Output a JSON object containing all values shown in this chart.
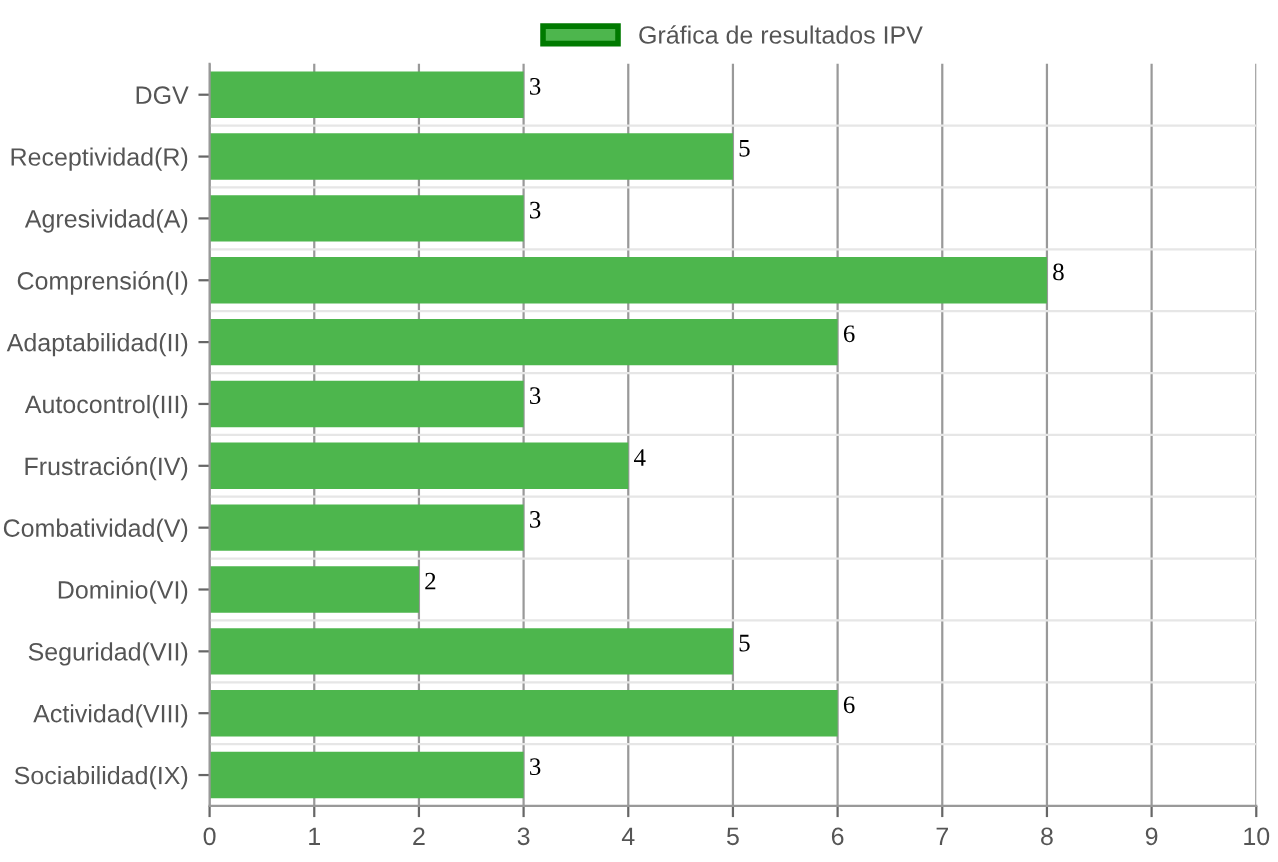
{
  "chart_data": {
    "type": "bar",
    "orientation": "horizontal",
    "categories": [
      "DGV",
      "Receptividad(R)",
      "Agresividad(A)",
      "Comprensión(I)",
      "Adaptabilidad(II)",
      "Autocontrol(III)",
      "Frustración(IV)",
      "Combatividad(V)",
      "Dominio(VI)",
      "Seguridad(VII)",
      "Actividad(VIII)",
      "Sociabilidad(IX)"
    ],
    "series": [
      {
        "name": "Gráfica de resultados IPV",
        "color": "#4db64d",
        "values": [
          3,
          5,
          3,
          8,
          6,
          3,
          4,
          3,
          2,
          5,
          6,
          3
        ]
      }
    ],
    "xlim": [
      0,
      10
    ],
    "xticks": [
      0,
      1,
      2,
      3,
      4,
      5,
      6,
      7,
      8,
      9,
      10
    ],
    "grid": true,
    "legend": "top",
    "data_labels": true
  }
}
